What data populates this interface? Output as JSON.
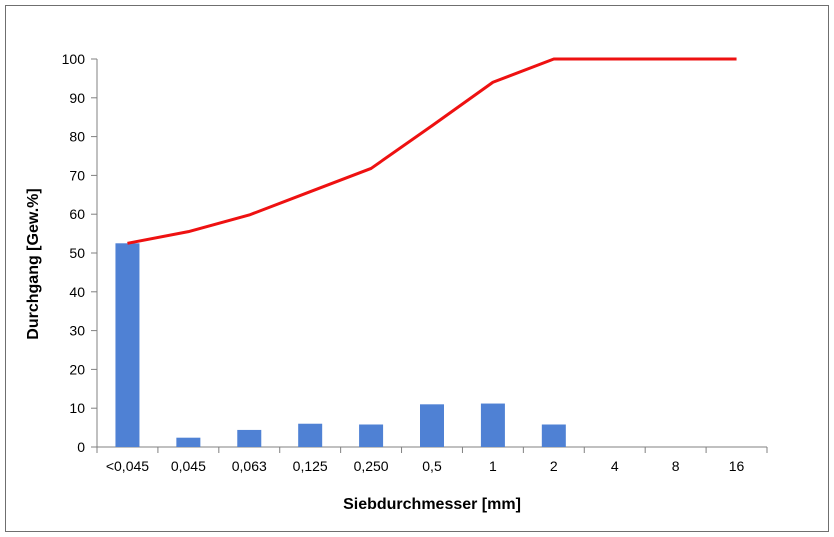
{
  "chart_data": {
    "type": "bar",
    "title": "",
    "xlabel": "Siebdurchmesser [mm]",
    "ylabel": "Durchgang  [Gew.%]",
    "categories": [
      "<0,045",
      "0,045",
      "0,063",
      "0,125",
      "0,250",
      "0,5",
      "1",
      "2",
      "4",
      "8",
      "16"
    ],
    "ylim": [
      0,
      100
    ],
    "yticks": [
      0,
      10,
      20,
      30,
      40,
      50,
      60,
      70,
      80,
      90,
      100
    ],
    "grid": false,
    "legend": "none",
    "series": [
      {
        "type": "bar",
        "color": "#4f81d4",
        "values": [
          52.5,
          2.4,
          4.4,
          6.0,
          5.8,
          11.0,
          11.2,
          5.8,
          0,
          0,
          0
        ]
      },
      {
        "type": "line",
        "color": "#ee1111",
        "values": [
          52.5,
          55.5,
          59.8,
          65.8,
          71.8,
          82.8,
          94.0,
          100,
          100,
          100,
          100
        ]
      }
    ]
  }
}
